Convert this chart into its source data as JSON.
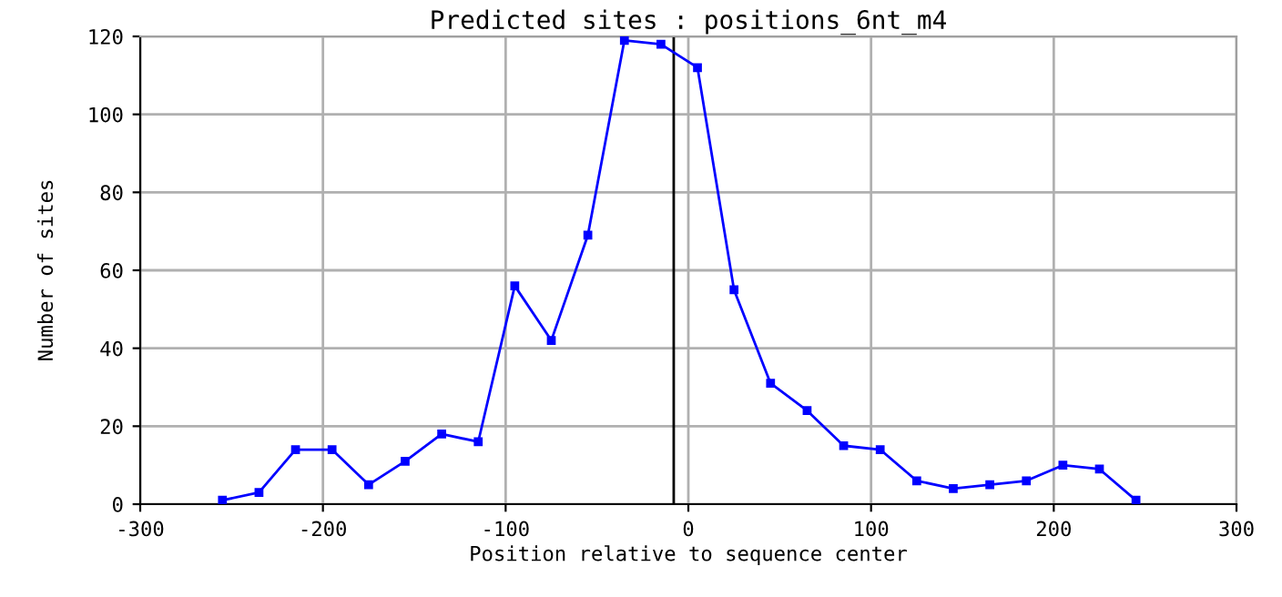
{
  "chart_data": {
    "type": "line",
    "title": "Predicted sites : positions_6nt_m4",
    "xlabel": "Position relative to sequence center",
    "ylabel": "Number of sites",
    "x": [
      -255,
      -235,
      -215,
      -195,
      -175,
      -155,
      -135,
      -115,
      -95,
      -75,
      -55,
      -35,
      -15,
      5,
      25,
      45,
      65,
      85,
      105,
      125,
      145,
      165,
      185,
      205,
      225,
      245
    ],
    "series": [
      {
        "color": "#0000ff",
        "values": [
          1,
          3,
          14,
          14,
          5,
          11,
          18,
          16,
          56,
          42,
          69,
          119,
          118,
          112,
          55,
          31,
          24,
          15,
          14,
          6,
          4,
          5,
          6,
          10,
          9,
          1
        ]
      }
    ],
    "xlim": [
      -300,
      300
    ],
    "xticks": [
      -300,
      -200,
      -100,
      0,
      100,
      200,
      300
    ],
    "ylim": [
      0,
      120
    ],
    "yticks": [
      0,
      20,
      40,
      60,
      80,
      100,
      120
    ],
    "ref_lines": [
      {
        "axis": "x",
        "value": -8,
        "color": "#000000"
      }
    ],
    "grid": true,
    "marker": "square",
    "line_style": "solid",
    "legend": false
  }
}
